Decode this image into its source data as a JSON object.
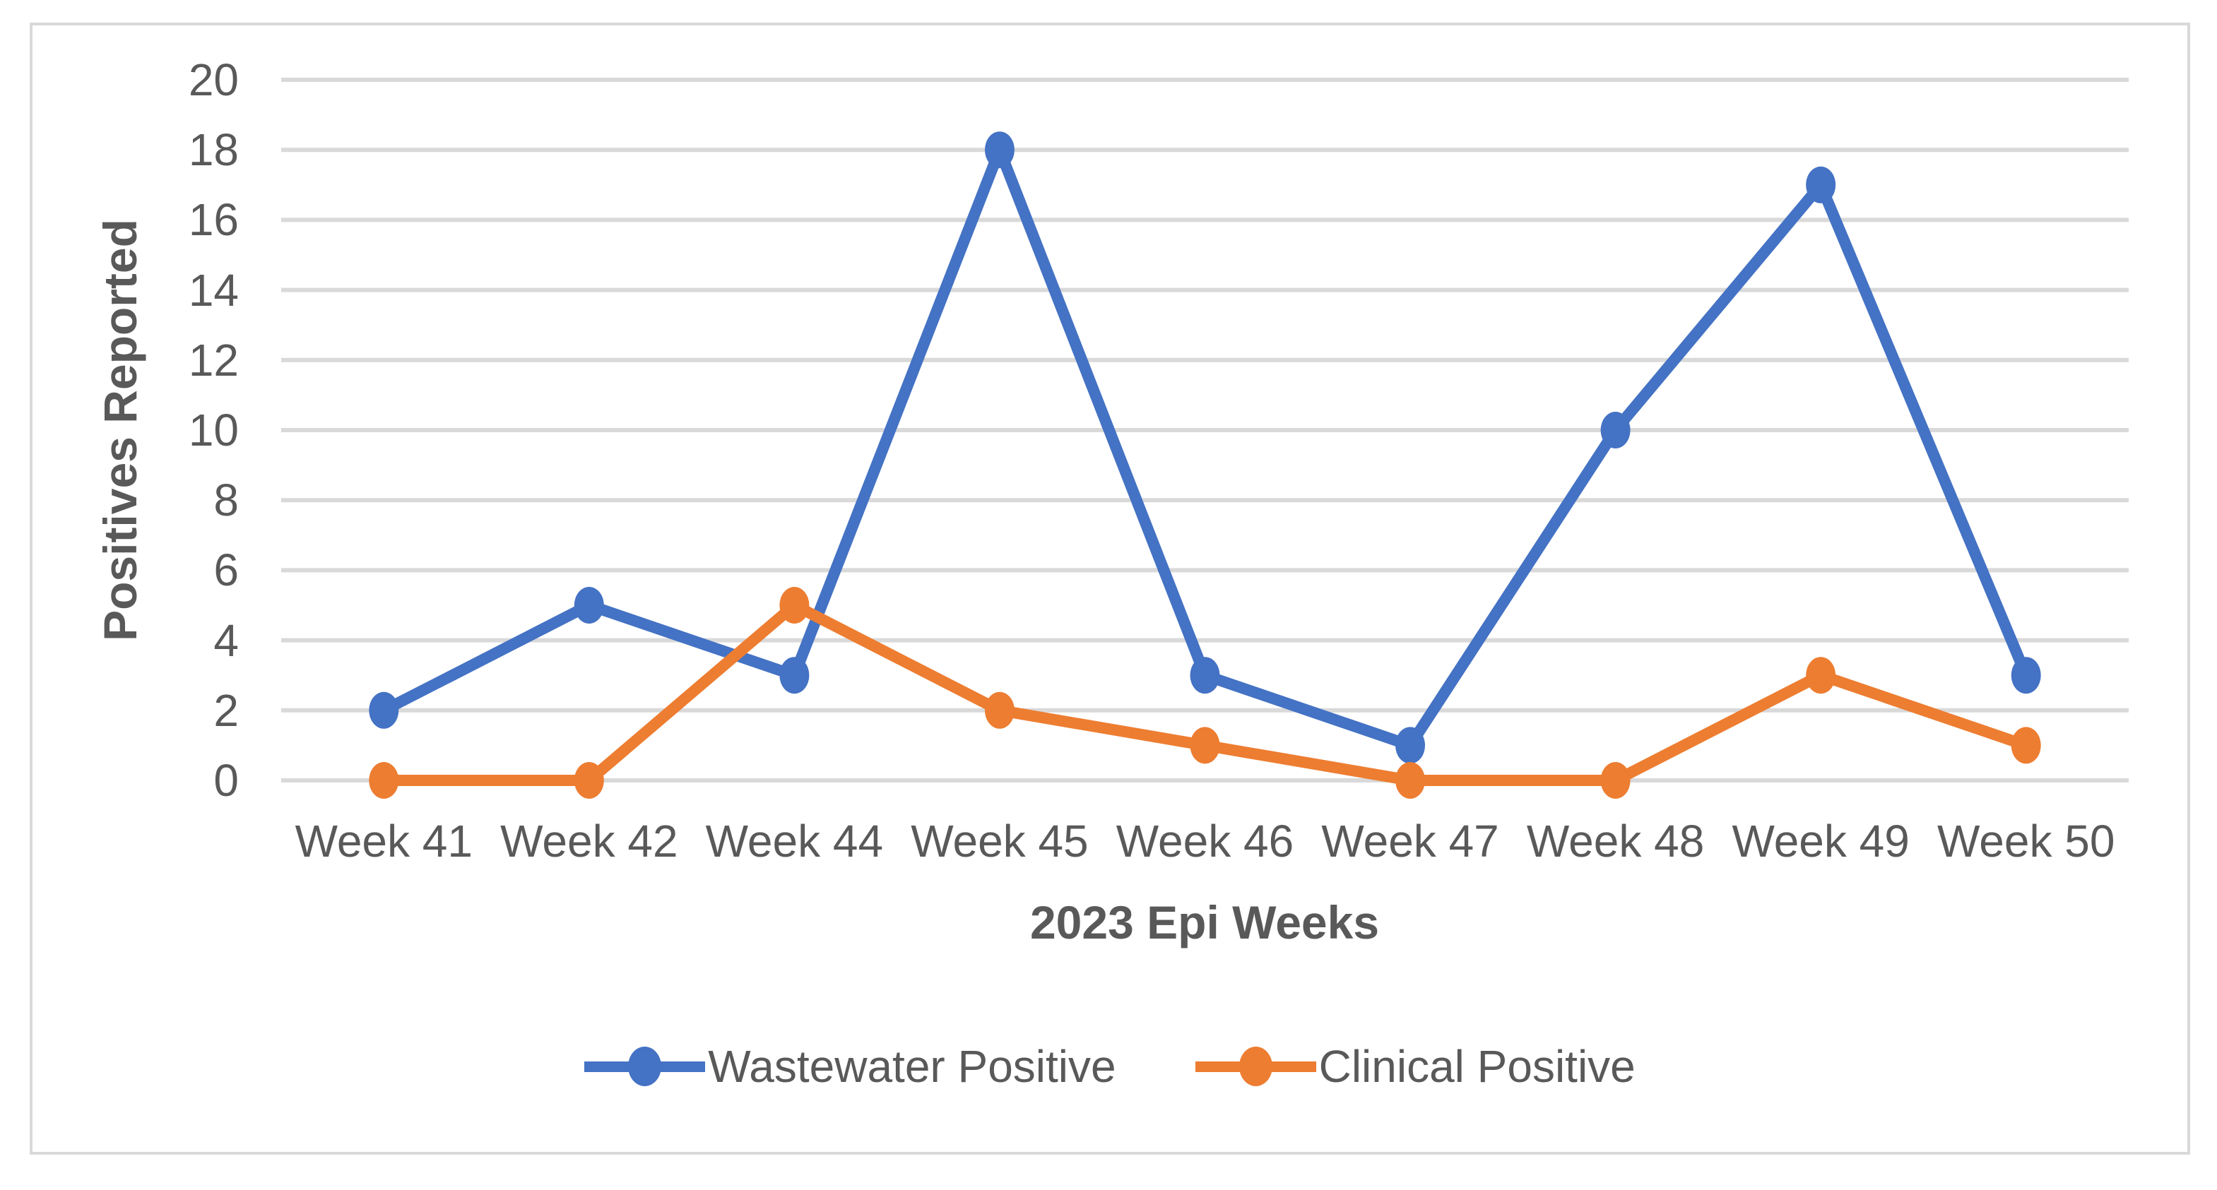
{
  "colors": {
    "background": "#FFFFFF",
    "frame_border": "#D9D9D9",
    "gridline": "#D9D9D9",
    "axis_text": "#595959",
    "series_blue": "#4472C4",
    "series_orange": "#ED7D31"
  },
  "chart_data": {
    "type": "line",
    "title": "",
    "categories": [
      "Week 41",
      "Week 42",
      "Week 44",
      "Week 45",
      "Week 46",
      "Week 47",
      "Week 48",
      "Week 49",
      "Week 50"
    ],
    "series": [
      {
        "name": "Wastewater Positive",
        "color": "#4472C4",
        "values": [
          2,
          5,
          3,
          18,
          3,
          1,
          10,
          17,
          3
        ]
      },
      {
        "name": "Clinical Positive",
        "color": "#ED7D31",
        "values": [
          0,
          0,
          5,
          2,
          1,
          0,
          0,
          3,
          1
        ]
      }
    ],
    "xlabel": "2023 Epi Weeks",
    "ylabel": "Positives Reported",
    "ylim": [
      0,
      20
    ],
    "y_ticks": [
      0,
      2,
      4,
      6,
      8,
      10,
      12,
      14,
      16,
      18,
      20
    ],
    "grid": "horizontal-only",
    "legend_position": "bottom",
    "marker": "circle"
  }
}
